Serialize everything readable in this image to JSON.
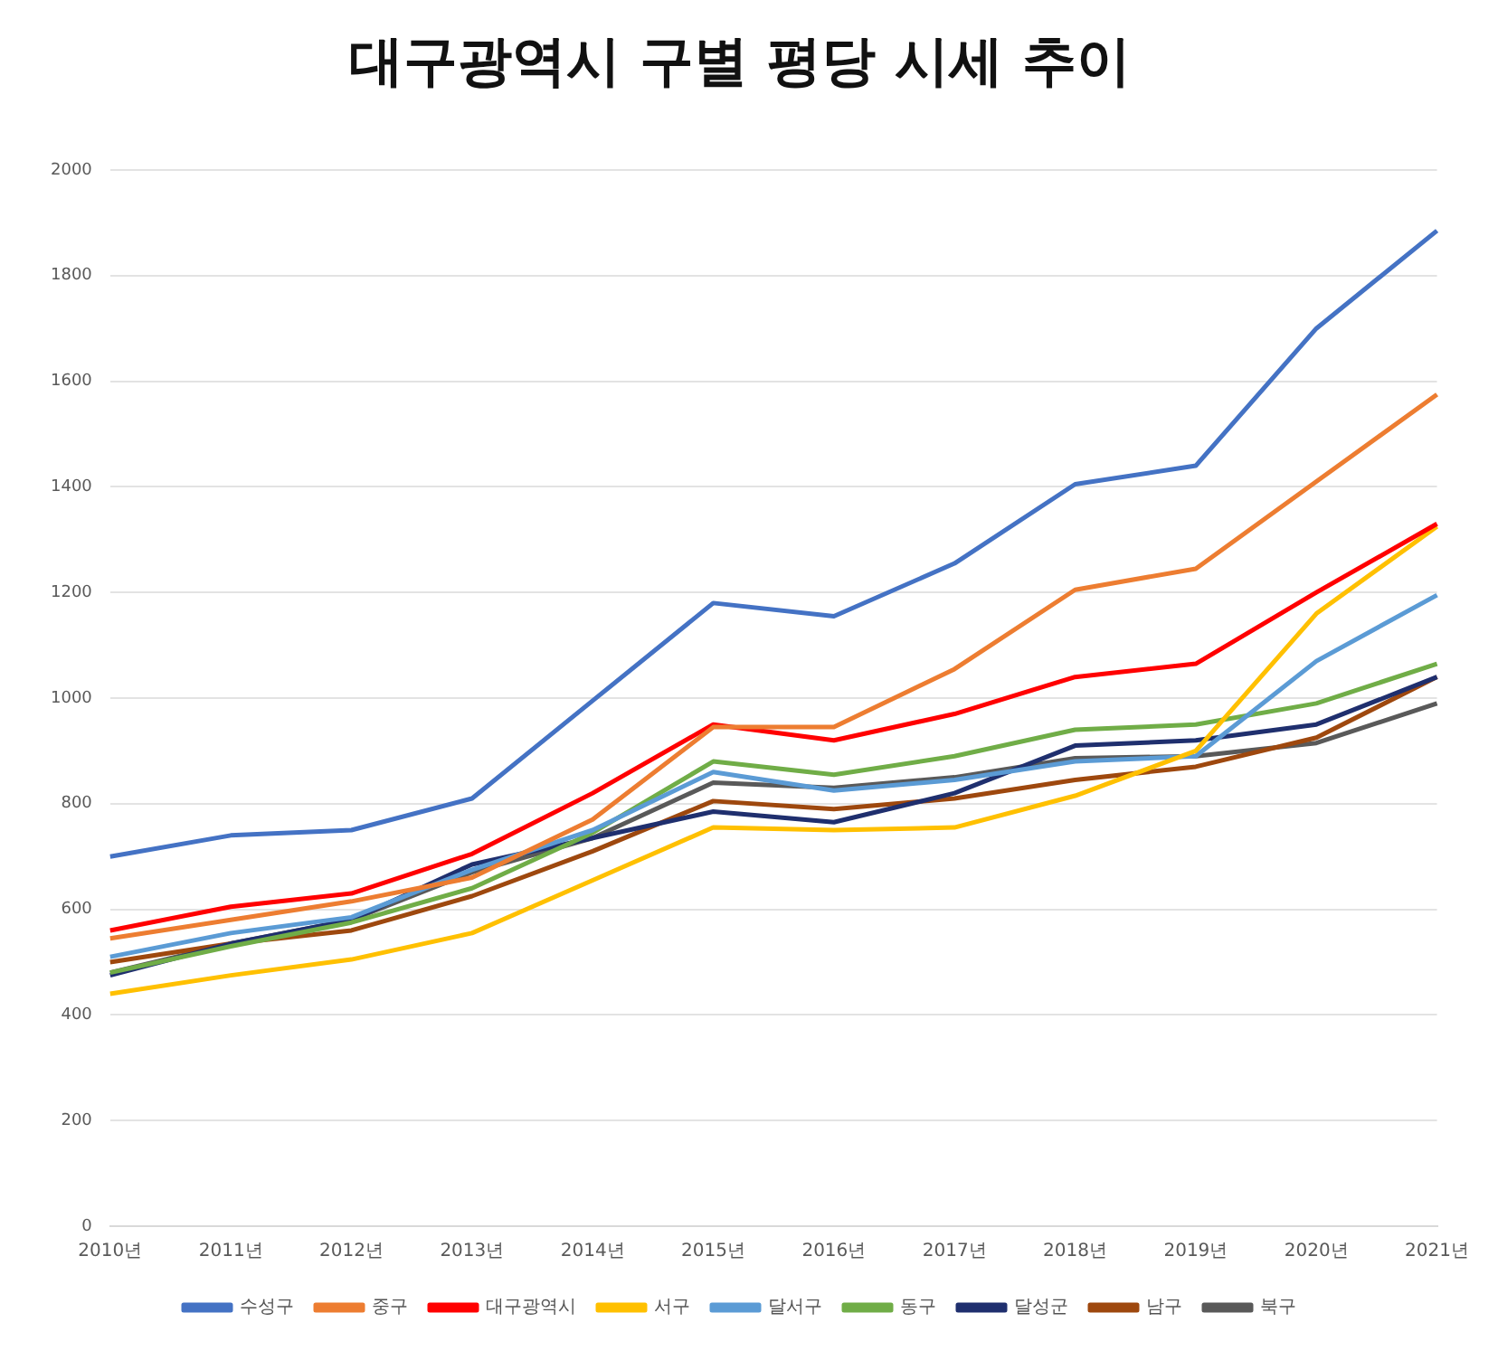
{
  "chart_data": {
    "type": "line",
    "title": "대구광역시 구별 평당 시세 추이",
    "categories": [
      "2010년",
      "2011년",
      "2012년",
      "2013년",
      "2014년",
      "2015년",
      "2016년",
      "2017년",
      "2018년",
      "2019년",
      "2020년",
      "2021년"
    ],
    "series": [
      {
        "name": "수성구",
        "color": "#4472c4",
        "values": [
          700,
          740,
          750,
          810,
          995,
          1180,
          1155,
          1255,
          1405,
          1440,
          1700,
          1885
        ]
      },
      {
        "name": "중구",
        "color": "#ed7d31",
        "values": [
          545,
          580,
          615,
          660,
          770,
          945,
          945,
          1055,
          1205,
          1245,
          1410,
          1575
        ]
      },
      {
        "name": "대구광역시",
        "color": "#ff0000",
        "values": [
          560,
          605,
          630,
          705,
          820,
          950,
          920,
          970,
          1040,
          1065,
          1200,
          1330
        ]
      },
      {
        "name": "서구",
        "color": "#ffc000",
        "values": [
          440,
          475,
          505,
          555,
          655,
          755,
          750,
          755,
          815,
          900,
          1160,
          1325
        ]
      },
      {
        "name": "달서구",
        "color": "#5b9bd5",
        "values": [
          510,
          555,
          585,
          675,
          750,
          860,
          825,
          845,
          880,
          890,
          1070,
          1195
        ]
      },
      {
        "name": "동구",
        "color": "#70ad47",
        "values": [
          480,
          530,
          575,
          640,
          745,
          880,
          855,
          890,
          940,
          950,
          990,
          1065
        ]
      },
      {
        "name": "달성군",
        "color": "#1f2f6e",
        "values": [
          475,
          535,
          580,
          685,
          735,
          785,
          765,
          820,
          910,
          920,
          950,
          1040
        ]
      },
      {
        "name": "남구",
        "color": "#9e480e",
        "values": [
          500,
          535,
          560,
          625,
          710,
          805,
          790,
          810,
          845,
          870,
          925,
          1040
        ]
      },
      {
        "name": "북구",
        "color": "#595959",
        "values": [
          480,
          535,
          580,
          670,
          735,
          840,
          830,
          850,
          886,
          890,
          915,
          990
        ]
      }
    ],
    "ylim": [
      0,
      2000
    ],
    "yticks": [
      0,
      200,
      400,
      600,
      800,
      1000,
      1200,
      1400,
      1600,
      1800,
      2000
    ],
    "grid": "y",
    "legend": "bottom",
    "marker": "none",
    "line_style": "solid"
  }
}
